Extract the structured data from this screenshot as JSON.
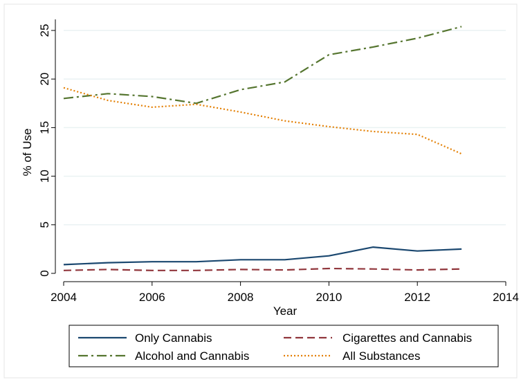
{
  "chart_data": {
    "type": "line",
    "xlabel": "Year",
    "ylabel": "% of Use",
    "xlim": [
      2004,
      2014
    ],
    "ylim": [
      0,
      25
    ],
    "xticks": [
      2004,
      2006,
      2008,
      2010,
      2012,
      2014
    ],
    "yticks": [
      0,
      5,
      10,
      15,
      20,
      25
    ],
    "grid": "horizontal",
    "legend_position": "bottom",
    "x": [
      2004,
      2005,
      2006,
      2007,
      2008,
      2009,
      2010,
      2011,
      2012,
      2013
    ],
    "series": [
      {
        "name": "Only Cannabis",
        "color": "#1a476f",
        "dash": "solid",
        "values": [
          0.9,
          1.1,
          1.2,
          1.2,
          1.4,
          1.4,
          1.8,
          2.7,
          2.3,
          2.5
        ]
      },
      {
        "name": "Cigarettes and Cannabis",
        "color": "#90353b",
        "dash": "dashed",
        "values": [
          0.3,
          0.4,
          0.3,
          0.3,
          0.4,
          0.35,
          0.5,
          0.45,
          0.35,
          0.45
        ]
      },
      {
        "name": "Alcohol and Cannabis",
        "color": "#55752f",
        "dash": "dashdot",
        "values": [
          18.0,
          18.5,
          18.2,
          17.5,
          18.9,
          19.7,
          22.5,
          23.3,
          24.2,
          25.4
        ]
      },
      {
        "name": "All Substances",
        "color": "#e37e00",
        "dash": "dotted",
        "values": [
          19.1,
          17.8,
          17.1,
          17.4,
          16.6,
          15.7,
          15.1,
          14.6,
          14.3,
          12.3
        ]
      }
    ]
  }
}
